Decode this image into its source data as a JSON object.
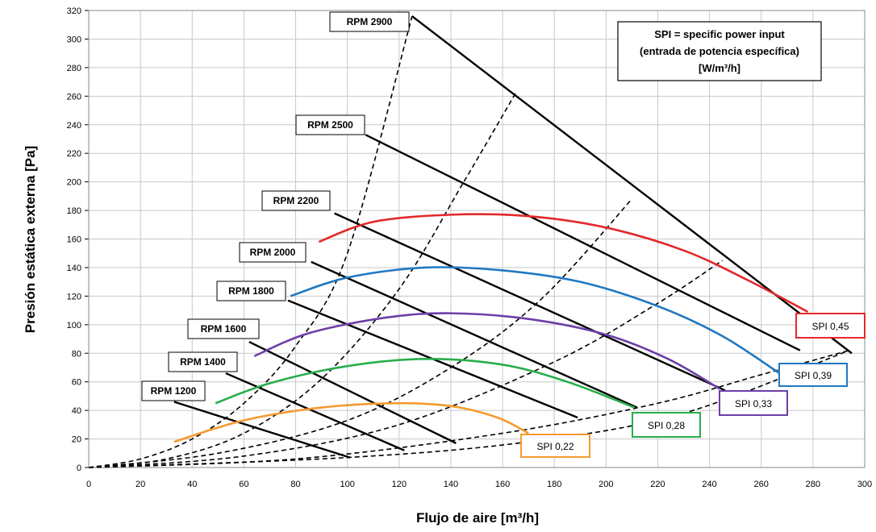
{
  "chart_data": {
    "type": "line",
    "title": "",
    "xlabel": "Flujo de aire [m³/h]",
    "ylabel": "Presión estática externa [Pa]",
    "xlim": [
      0,
      300
    ],
    "ylim": [
      0,
      320
    ],
    "x_ticks": [
      0,
      20,
      40,
      60,
      80,
      100,
      120,
      140,
      160,
      180,
      200,
      220,
      240,
      260,
      280,
      300
    ],
    "y_ticks": [
      0,
      20,
      40,
      60,
      80,
      100,
      120,
      140,
      160,
      180,
      200,
      220,
      240,
      260,
      280,
      300,
      320
    ],
    "grid": true,
    "note_lines": [
      "SPI = specific power input",
      "(entrada de potencia específica)",
      "[W/m³/h]"
    ],
    "rpm_series": [
      {
        "name": "RPM 1200",
        "points": [
          [
            33,
            46
          ],
          [
            101,
            7
          ]
        ]
      },
      {
        "name": "RPM 1400",
        "points": [
          [
            53,
            66
          ],
          [
            122,
            12
          ]
        ]
      },
      {
        "name": "RPM 1600",
        "points": [
          [
            62,
            88
          ],
          [
            142,
            17
          ]
        ]
      },
      {
        "name": "RPM 1800",
        "points": [
          [
            77,
            117
          ],
          [
            189,
            35
          ]
        ]
      },
      {
        "name": "RPM 2000",
        "points": [
          [
            86,
            144
          ],
          [
            212,
            42
          ]
        ]
      },
      {
        "name": "RPM 2200",
        "points": [
          [
            95,
            178
          ],
          [
            246,
            54
          ]
        ]
      },
      {
        "name": "RPM 2500",
        "points": [
          [
            107,
            233
          ],
          [
            275,
            82
          ]
        ]
      },
      {
        "name": "RPM 2900",
        "points": [
          [
            125,
            316
          ],
          [
            295,
            80
          ]
        ]
      }
    ],
    "system_curves": [
      {
        "points": [
          [
            0,
            0
          ],
          [
            20,
            6
          ],
          [
            40,
            20
          ],
          [
            60,
            45
          ],
          [
            80,
            85
          ],
          [
            100,
            150
          ],
          [
            125,
            316
          ]
        ]
      },
      {
        "points": [
          [
            0,
            0
          ],
          [
            30,
            6
          ],
          [
            60,
            24
          ],
          [
            90,
            62
          ],
          [
            120,
            125
          ],
          [
            145,
            200
          ],
          [
            165,
            262
          ]
        ]
      },
      {
        "points": [
          [
            0,
            0
          ],
          [
            50,
            10
          ],
          [
            100,
            33
          ],
          [
            140,
            70
          ],
          [
            175,
            118
          ],
          [
            210,
            188
          ]
        ]
      },
      {
        "points": [
          [
            0,
            0
          ],
          [
            60,
            8
          ],
          [
            120,
            30
          ],
          [
            180,
            74
          ],
          [
            220,
            115
          ],
          [
            245,
            145
          ]
        ]
      },
      {
        "points": [
          [
            0,
            0
          ],
          [
            80,
            6
          ],
          [
            160,
            24
          ],
          [
            220,
            45
          ],
          [
            260,
            65
          ],
          [
            294,
            82
          ]
        ]
      },
      {
        "points": [
          [
            0,
            0
          ],
          [
            100,
            7
          ],
          [
            170,
            18
          ],
          [
            230,
            38
          ],
          [
            294,
            82
          ]
        ]
      }
    ],
    "spi_series": [
      {
        "name": "SPI 0,22",
        "color": "#f59a2e",
        "points": [
          [
            33,
            18
          ],
          [
            60,
            33
          ],
          [
            90,
            42
          ],
          [
            118,
            45
          ],
          [
            140,
            43
          ],
          [
            158,
            35
          ],
          [
            170,
            24
          ]
        ]
      },
      {
        "name": "SPI 0,28",
        "color": "#27ae4a",
        "points": [
          [
            49,
            45
          ],
          [
            70,
            59
          ],
          [
            100,
            71
          ],
          [
            130,
            76
          ],
          [
            160,
            72
          ],
          [
            185,
            60
          ],
          [
            211,
            42
          ]
        ]
      },
      {
        "name": "SPI 0,33",
        "color": "#6b3fa6",
        "points": [
          [
            64,
            78
          ],
          [
            85,
            94
          ],
          [
            115,
            105
          ],
          [
            140,
            108
          ],
          [
            170,
            104
          ],
          [
            200,
            93
          ],
          [
            224,
            76
          ],
          [
            244,
            55
          ]
        ]
      },
      {
        "name": "SPI 0,39",
        "color": "#1f78c1",
        "points": [
          [
            78,
            120
          ],
          [
            100,
            133
          ],
          [
            130,
            140
          ],
          [
            160,
            138
          ],
          [
            190,
            130
          ],
          [
            220,
            113
          ],
          [
            245,
            92
          ],
          [
            267,
            66
          ]
        ]
      },
      {
        "name": "SPI 0,45",
        "color": "#e3292b",
        "points": [
          [
            89,
            158
          ],
          [
            110,
            172
          ],
          [
            140,
            177
          ],
          [
            170,
            176
          ],
          [
            200,
            168
          ],
          [
            230,
            152
          ],
          [
            255,
            131
          ],
          [
            278,
            109
          ]
        ]
      }
    ]
  }
}
